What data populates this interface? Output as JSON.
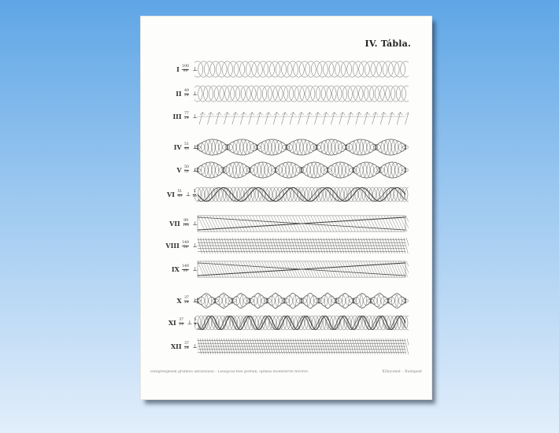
{
  "plate": {
    "title": "IV. Tábla.",
    "caption_left": "Hangrezgések grafikus ábrázolása – Lissajous-féle görbék, optikai módszerrel felvéve.",
    "caption_right": "Kőnyomat – Budapest"
  },
  "figures": [
    {
      "numeral": "I",
      "ratio": [
        "100",
        "99"
      ],
      "extra": null,
      "pattern": "loops",
      "density": 36,
      "cycles": 0
    },
    {
      "numeral": "II",
      "ratio": [
        "49",
        "24"
      ],
      "extra": null,
      "pattern": "loops",
      "density": 40,
      "cycles": 0
    },
    {
      "numeral": "III",
      "ratio": [
        "77",
        "24"
      ],
      "extra": null,
      "pattern": "zigzag",
      "density": 26,
      "cycles": 0
    },
    {
      "numeral": "IV",
      "ratio": [
        "51",
        "49"
      ],
      "extra": null,
      "pattern": "bulges",
      "density": 60,
      "cycles": 7
    },
    {
      "numeral": "V",
      "ratio": [
        "50",
        "51"
      ],
      "extra": null,
      "pattern": "bulges",
      "density": 60,
      "cycles": 8
    },
    {
      "numeral": "VI",
      "ratio": [
        "51",
        "49"
      ],
      "extra": [
        "5",
        "16"
      ],
      "pattern": "twist",
      "density": 60,
      "cycles": 6
    },
    {
      "numeral": "VII",
      "ratio": [
        "99",
        "100"
      ],
      "extra": null,
      "pattern": "cross",
      "density": 70,
      "cycles": 1
    },
    {
      "numeral": "VIII",
      "ratio": [
        "149",
        "50"
      ],
      "extra": null,
      "pattern": "dense",
      "density": 80,
      "cycles": 0
    },
    {
      "numeral": "IX",
      "ratio": [
        "149",
        "99"
      ],
      "extra": null,
      "pattern": "cross",
      "density": 80,
      "cycles": 1
    },
    {
      "numeral": "X",
      "ratio": [
        "37",
        "24"
      ],
      "extra": null,
      "pattern": "diamond",
      "density": 60,
      "cycles": 12
    },
    {
      "numeral": "XI",
      "ratio": [
        "37",
        "24"
      ],
      "extra": [
        "5",
        "8"
      ],
      "pattern": "twist",
      "density": 60,
      "cycles": 11
    },
    {
      "numeral": "XII",
      "ratio": [
        "37",
        "24"
      ],
      "extra": null,
      "pattern": "dense",
      "density": 90,
      "cycles": 0
    }
  ]
}
